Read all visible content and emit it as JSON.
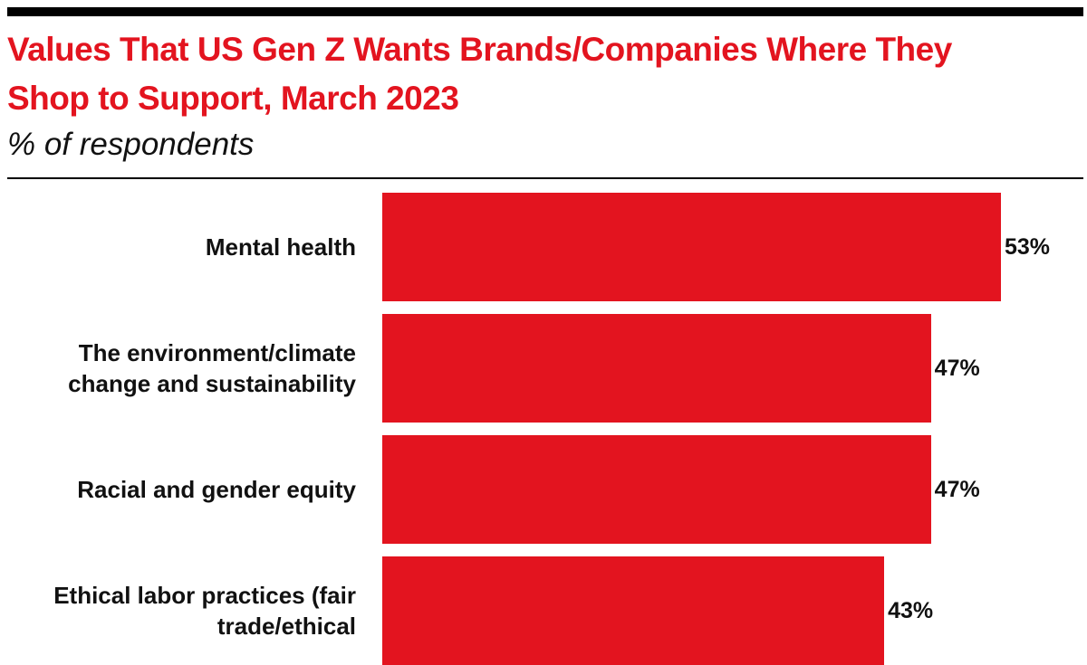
{
  "chart_data": {
    "type": "bar",
    "orientation": "horizontal",
    "title": "Values That US Gen Z Wants Brands/Companies Where They Shop to Support, March 2023",
    "subtitle": "% of respondents",
    "categories": [
      "Mental health",
      "The environment/climate change and sustainability",
      "Racial and gender equity",
      "Ethical labor practices (fair trade/ethical"
    ],
    "values": [
      53,
      47,
      47,
      43
    ],
    "value_labels": [
      "53%",
      "47%",
      "47%",
      "43%"
    ],
    "color": "#e3141f"
  }
}
